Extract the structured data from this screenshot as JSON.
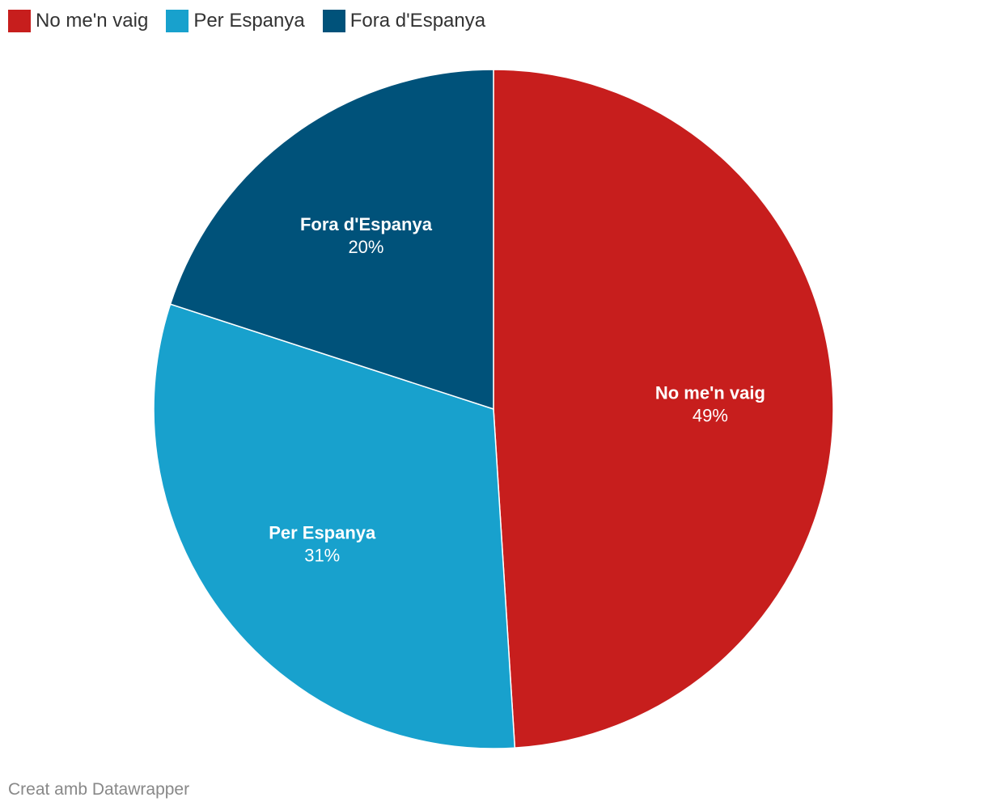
{
  "legend": {
    "items": [
      {
        "label": "No me'n vaig",
        "color": "#c71e1d"
      },
      {
        "label": "Per Espanya",
        "color": "#18a1cd"
      },
      {
        "label": "Fora d'Espanya",
        "color": "#00527a"
      }
    ]
  },
  "chart_data": {
    "type": "pie",
    "categories": [
      "No me'n vaig",
      "Per Espanya",
      "Fora d'Espanya"
    ],
    "values": [
      49,
      31,
      20
    ],
    "value_labels": [
      "49%",
      "31%",
      "20%"
    ],
    "colors": [
      "#c71e1d",
      "#18a1cd",
      "#00527a"
    ],
    "legend": "top-left",
    "title": ""
  },
  "footer": {
    "credit": "Creat amb Datawrapper"
  }
}
